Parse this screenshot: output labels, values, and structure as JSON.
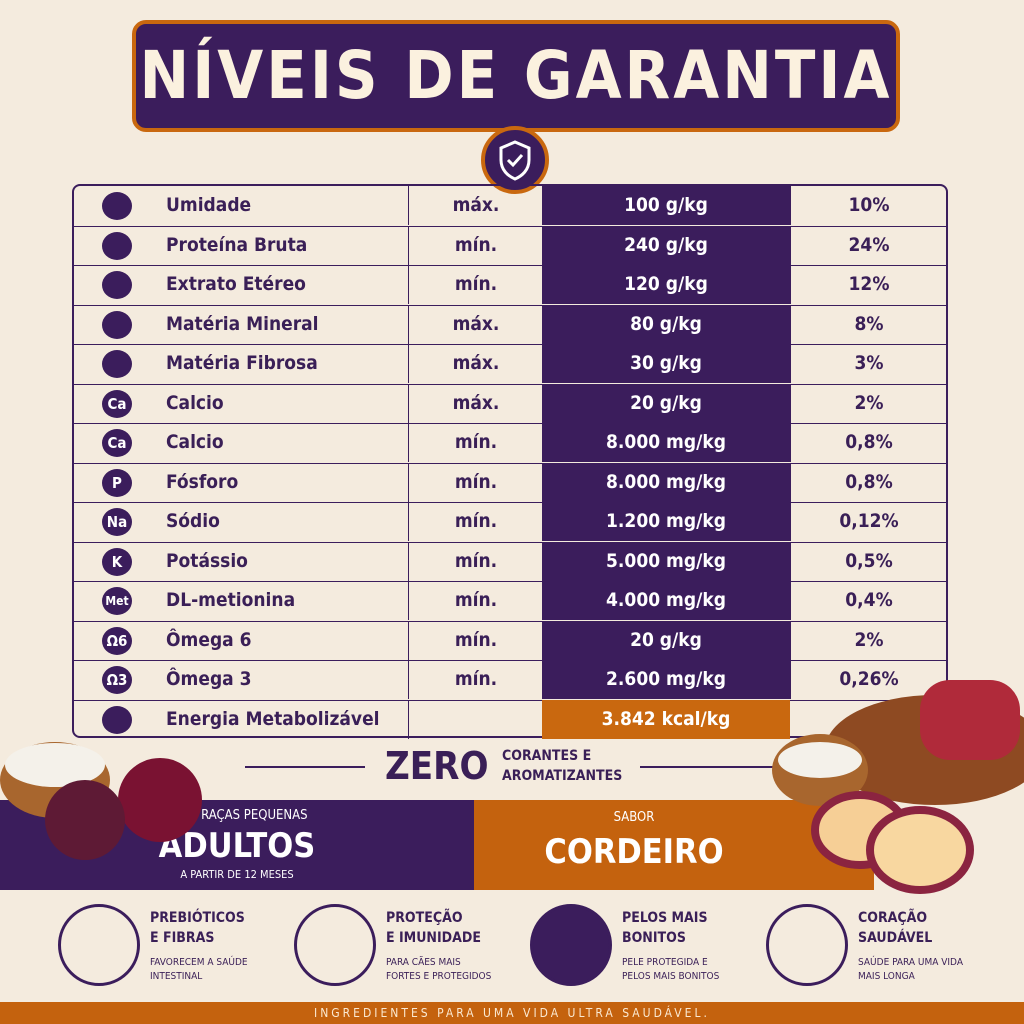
{
  "header": {
    "title": "NÍVEIS DE GARANTIA"
  },
  "table": {
    "rows": [
      {
        "name": "Umidade",
        "qualifier": "máx.",
        "amount": "100 g/kg",
        "percent": "10%"
      },
      {
        "name": "Proteína Bruta",
        "qualifier": "mín.",
        "amount": "240 g/kg",
        "percent": "24%"
      },
      {
        "name": "Extrato Etéreo",
        "qualifier": "mín.",
        "amount": "120 g/kg",
        "percent": "12%"
      },
      {
        "name": "Matéria Mineral",
        "qualifier": "máx.",
        "amount": "80 g/kg",
        "percent": "8%"
      },
      {
        "name": "Matéria Fibrosa",
        "qualifier": "máx.",
        "amount": "30 g/kg",
        "percent": "3%"
      },
      {
        "icon": "Ca",
        "name": "Calcio",
        "qualifier": "máx.",
        "amount": "20 g/kg",
        "percent": "2%"
      },
      {
        "icon": "Ca",
        "name": "Calcio",
        "qualifier": "mín.",
        "amount": "8.000 mg/kg",
        "percent": "0,8%"
      },
      {
        "icon": "P",
        "name": "Fósforo",
        "qualifier": "mín.",
        "amount": "8.000 mg/kg",
        "percent": "0,8%"
      },
      {
        "icon": "Na",
        "name": "Sódio",
        "qualifier": "mín.",
        "amount": "1.200 mg/kg",
        "percent": "0,12%"
      },
      {
        "icon": "K",
        "name": "Potássio",
        "qualifier": "mín.",
        "amount": "5.000 mg/kg",
        "percent": "0,5%"
      },
      {
        "icon": "Met",
        "name": "DL-metionina",
        "qualifier": "mín.",
        "amount": "4.000 mg/kg",
        "percent": "0,4%"
      },
      {
        "icon": "Ω6",
        "name": "Ômega 6",
        "qualifier": "mín.",
        "amount": "20 g/kg",
        "percent": "2%"
      },
      {
        "icon": "Ω3",
        "name": "Ômega 3",
        "qualifier": "mín.",
        "amount": "2.600 mg/kg",
        "percent": "0,26%"
      },
      {
        "name": "Energia Metabolizável",
        "amount": "3.842 kcal/kg"
      }
    ]
  },
  "zero": {
    "title": "ZERO",
    "lines": [
      "CORANTES E",
      "AROMATIZANTES"
    ]
  },
  "banner": {
    "left": {
      "top": "CÃES RAÇAS PEQUENAS",
      "main": "ADULTOS",
      "bottom": "A PARTIR DE 12 MESES"
    },
    "right": {
      "top": "SABOR",
      "main": "CORDEIRO"
    }
  },
  "benefits": [
    {
      "title": [
        "PREBIÓTICOS",
        "E FIBRAS"
      ],
      "text": [
        "FAVORECEM A SAÚDE",
        "INTESTINAL"
      ]
    },
    {
      "title": [
        "PROTEÇÃO",
        "E IMUNIDADE"
      ],
      "text": [
        "PARA CÃES MAIS",
        "FORTES E PROTEGIDOS"
      ]
    },
    {
      "title": [
        "PELOS MAIS",
        "BONITOS"
      ],
      "text": [
        "PELE PROTEGIDA E",
        "PELOS MAIS BONITOS"
      ]
    },
    {
      "title": [
        "CORAÇÃO",
        "SAUDÁVEL"
      ],
      "text": [
        "SAÚDE PARA UMA VIDA",
        "MAIS LONGA"
      ]
    }
  ],
  "footer": "INGREDIENTES PARA UMA VIDA ULTRA SAUDÁVEL."
}
